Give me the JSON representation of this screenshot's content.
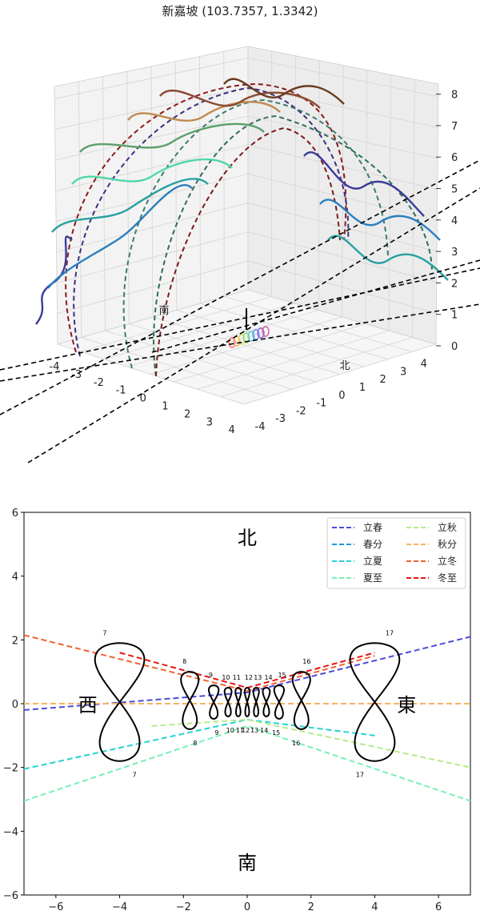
{
  "title": "新嘉坡 (103.7357, 1.3342)",
  "chart_data": [
    {
      "type": "line",
      "subtype": "3d-sun-path",
      "z_ticks": [
        "0",
        "1",
        "2",
        "3",
        "4",
        "5",
        "6",
        "7",
        "8"
      ],
      "y_ticks_right": [
        "-4",
        "-3",
        "-2",
        "-1",
        "0",
        "1",
        "2",
        "3",
        "4"
      ],
      "x_ticks_left": [
        "-4",
        "-3",
        "-2",
        "-1",
        "0",
        "1",
        "2",
        "3",
        "4"
      ],
      "labels": {
        "south": "南",
        "north": "北"
      },
      "grid": true
    },
    {
      "type": "line",
      "subtype": "analemma",
      "xlim": [
        -7,
        7
      ],
      "ylim": [
        -6,
        6
      ],
      "x_ticks": [
        "−6",
        "−4",
        "−2",
        "0",
        "2",
        "4",
        "6"
      ],
      "y_ticks": [
        "−6",
        "−4",
        "−2",
        "0",
        "2",
        "4",
        "6"
      ],
      "directions": {
        "north": "北",
        "south": "南",
        "west": "西",
        "east": "東"
      },
      "legend_position": "top-right",
      "series": [
        {
          "name": "立春",
          "color": "#4b4bdc",
          "points": [
            [
              -7,
              -0.2
            ],
            [
              0,
              0.35
            ],
            [
              7,
              2.1
            ]
          ]
        },
        {
          "name": "春分",
          "color": "#1e96dc",
          "points": [
            [
              -7,
              0
            ],
            [
              0,
              0
            ],
            [
              7,
              0
            ]
          ]
        },
        {
          "name": "立夏",
          "color": "#28d2d2",
          "points": [
            [
              -7,
              -2.05
            ],
            [
              0,
              -0.5
            ],
            [
              4,
              -1.0
            ]
          ]
        },
        {
          "name": "夏至",
          "color": "#78f0b4",
          "points": [
            [
              -7,
              -3.05
            ],
            [
              0,
              -0.7
            ],
            [
              7,
              -3.05
            ]
          ]
        },
        {
          "name": "立秋",
          "color": "#b4eb8c",
          "points": [
            [
              -3,
              -0.7
            ],
            [
              0,
              -0.5
            ],
            [
              7,
              -2.0
            ]
          ]
        },
        {
          "name": "秋分",
          "color": "#f5b464",
          "points": [
            [
              -7,
              0
            ],
            [
              0,
              0
            ],
            [
              7,
              0
            ]
          ]
        },
        {
          "name": "立冬",
          "color": "#f06432",
          "points": [
            [
              -7,
              2.15
            ],
            [
              0,
              0.4
            ],
            [
              4,
              1.5
            ]
          ]
        },
        {
          "name": "冬至",
          "color": "#e61414",
          "points": [
            [
              -4,
              1.6
            ],
            [
              0,
              0.5
            ],
            [
              4,
              1.6
            ]
          ]
        }
      ],
      "analemmas": [
        {
          "hour": "7",
          "center": [
            -4.0,
            0.05
          ],
          "width": 1.4,
          "height": 3.7
        },
        {
          "hour": "8",
          "center": [
            -1.8,
            0.1
          ],
          "width": 0.5,
          "height": 1.8
        },
        {
          "hour": "9",
          "center": [
            -1.05,
            0.05
          ],
          "width": 0.28,
          "height": 1.05
        },
        {
          "hour": "10",
          "center": [
            -0.6,
            0.05
          ],
          "width": 0.2,
          "height": 0.9
        },
        {
          "hour": "11",
          "center": [
            -0.28,
            0.05
          ],
          "width": 0.16,
          "height": 0.9
        },
        {
          "hour": "12",
          "center": [
            0.0,
            0.05
          ],
          "width": 0.14,
          "height": 0.9
        },
        {
          "hour": "13",
          "center": [
            0.28,
            0.05
          ],
          "width": 0.16,
          "height": 0.9
        },
        {
          "hour": "14",
          "center": [
            0.6,
            0.05
          ],
          "width": 0.2,
          "height": 0.9
        },
        {
          "hour": "15",
          "center": [
            1.0,
            0.05
          ],
          "width": 0.28,
          "height": 1.05
        },
        {
          "hour": "16",
          "center": [
            1.7,
            0.1
          ],
          "width": 0.5,
          "height": 1.8
        },
        {
          "hour": "17",
          "center": [
            4.0,
            0.05
          ],
          "width": 1.4,
          "height": 3.7
        }
      ]
    }
  ]
}
